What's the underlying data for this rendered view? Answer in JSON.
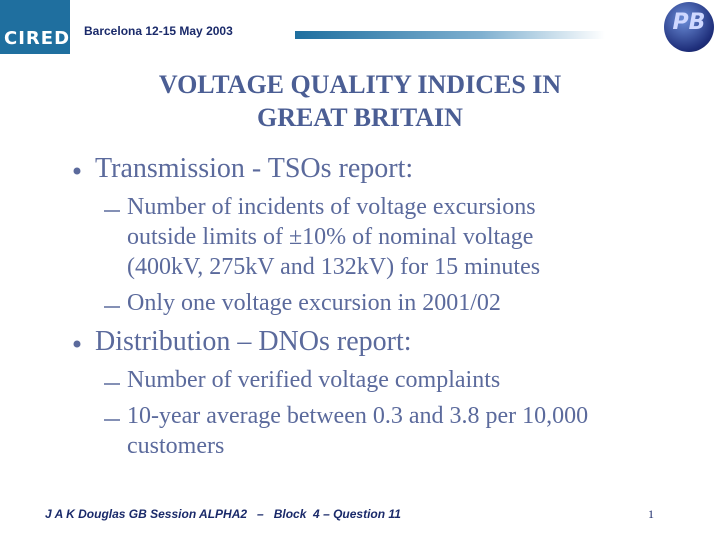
{
  "header": {
    "logo_text": "CIRED",
    "event": "Barcelona  12-15 May 2003",
    "badge": "PB"
  },
  "title": [
    "VOLTAGE QUALITY INDICES IN",
    "GREAT BRITAIN"
  ],
  "bullets": [
    {
      "text": "Transmission  - TSOs report:",
      "sub": [
        {
          "lines": [
            "Number of incidents of voltage excursions",
            "outside limits of ±10% of nominal voltage",
            "(400kV, 275kV and 132kV) for 15 minutes"
          ]
        },
        {
          "lines": [
            "Only one voltage excursion in 2001/02"
          ]
        }
      ]
    },
    {
      "text": "Distribution – DNOs report:",
      "sub": [
        {
          "lines": [
            "Number of verified voltage complaints"
          ]
        },
        {
          "lines": [
            "10-year average between 0.3 and 3.8 per 10,000",
            "customers"
          ]
        }
      ]
    }
  ],
  "footer": "J A K Douglas GB Session ALPHA2   –   Block  4 – Question 11",
  "page_number": "1"
}
